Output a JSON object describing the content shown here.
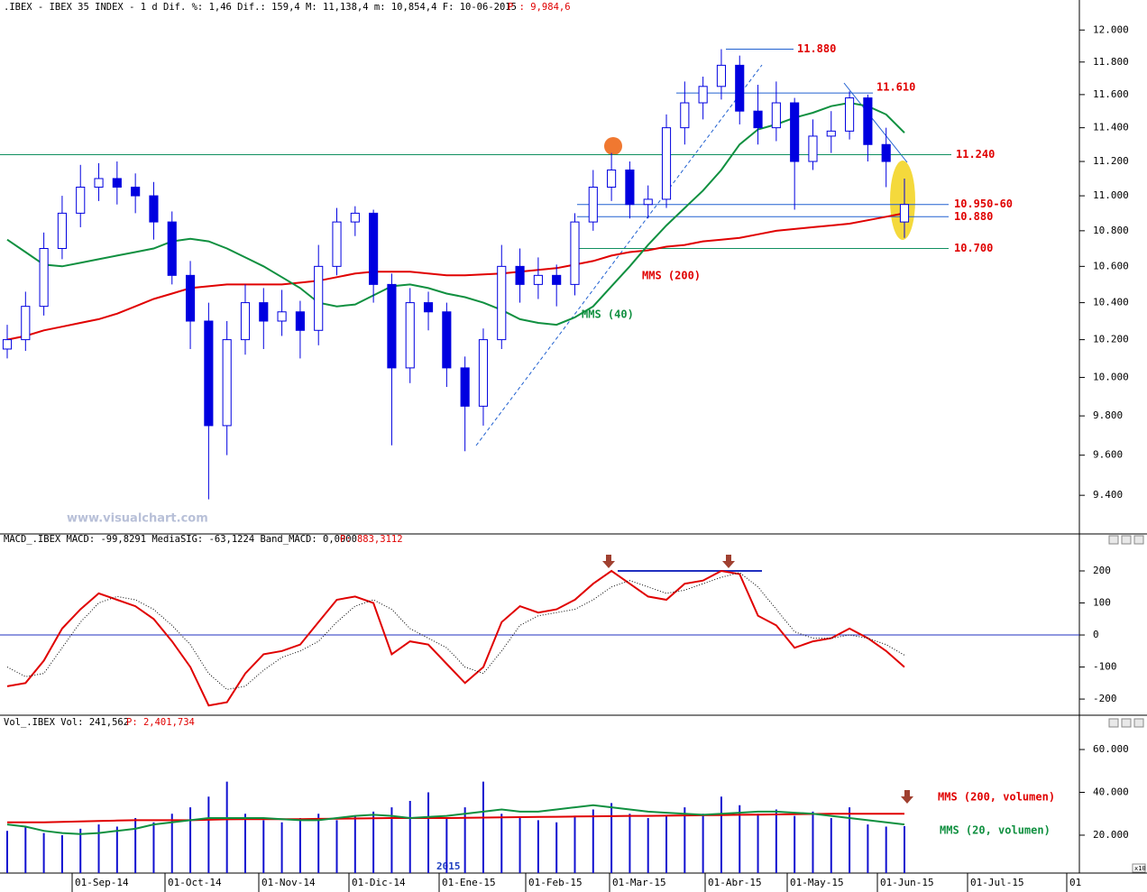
{
  "header": {
    "price": ".IBEX - IBEX 35 INDEX -  1 d Dif. %: 1,46 Dif.: 159,4 M: 11,138,4 m: 10,854,4 F: 10-06-2015",
    "price_p": "P : 9,984,6",
    "macd": "MACD_.IBEX MACD: -99,8291 MediaSIG: -63,1224 Band_MACD: 0,0000",
    "macd_p": "P: 883,3112",
    "vol": "Vol_.IBEX Vol: 241,562",
    "vol_p": "P: 2,401,734"
  },
  "x_axis_labels": [
    "01-Sep-14",
    "01-Oct-14",
    "01-Nov-14",
    "01-Dic-14",
    "01-Ene-15",
    "01-Feb-15",
    "01-Mar-15",
    "01-Abr-15",
    "01-May-15",
    "01-Jun-15",
    "01-Jul-15",
    "01"
  ],
  "year_label": "2015",
  "scale_badge": "x10",
  "chart_data": [
    {
      "type": "candlestick",
      "watermark": "www.visualchart.com",
      "log_scale": true,
      "up_color": "#ffffff",
      "down_color": "#0000e0",
      "outline_color": "#0000e0",
      "ylim": [
        9220,
        12110
      ],
      "yticks": [
        {
          "value": 9400,
          "label": "9.400"
        },
        {
          "value": 9600,
          "label": "9.600"
        },
        {
          "value": 9800,
          "label": "9.800"
        },
        {
          "value": 10000,
          "label": "10.000"
        },
        {
          "value": 10200,
          "label": "10.200"
        },
        {
          "value": 10400,
          "label": "10.400"
        },
        {
          "value": 10600,
          "label": "10.600"
        },
        {
          "value": 10800,
          "label": "10.800"
        },
        {
          "value": 11000,
          "label": "11.000"
        },
        {
          "value": 11200,
          "label": "11.200"
        },
        {
          "value": 11400,
          "label": "11.400"
        },
        {
          "value": 11600,
          "label": "11.600"
        },
        {
          "value": 11800,
          "label": "11.800"
        },
        {
          "value": 12000,
          "label": "12.000"
        }
      ],
      "open": [
        10150,
        10200,
        10380,
        10700,
        10900,
        11050,
        11100,
        11050,
        11000,
        10850,
        10550,
        10300,
        9750,
        10200,
        10400,
        10300,
        10350,
        10250,
        10600,
        10850,
        10900,
        10500,
        10050,
        10400,
        10350,
        10050,
        9850,
        10200,
        10600,
        10500,
        10550,
        10500,
        10850,
        11050,
        11150,
        10950,
        10980,
        11400,
        11550,
        11650,
        11780,
        11500,
        11400,
        11550,
        11200,
        11350,
        11380,
        11580,
        11300,
        10850
      ],
      "high": [
        10280,
        10460,
        10790,
        11000,
        11180,
        11190,
        11200,
        11130,
        11080,
        10910,
        10630,
        10400,
        10300,
        10500,
        10480,
        10470,
        10410,
        10720,
        10930,
        10940,
        10920,
        10560,
        10480,
        10460,
        10400,
        10110,
        10260,
        10720,
        10700,
        10650,
        10610,
        10900,
        11150,
        11250,
        11200,
        11060,
        11480,
        11680,
        11710,
        11880,
        11840,
        11660,
        11680,
        11580,
        11450,
        11500,
        11620,
        11600,
        11400,
        11100
      ],
      "low": [
        10100,
        10140,
        10330,
        10640,
        10820,
        10970,
        10950,
        10900,
        10750,
        10500,
        10150,
        9380,
        9600,
        10120,
        10150,
        10220,
        10100,
        10170,
        10550,
        10770,
        10400,
        9650,
        9970,
        10250,
        9950,
        9620,
        9750,
        10150,
        10400,
        10420,
        10380,
        10440,
        10800,
        10970,
        10870,
        10870,
        10930,
        11300,
        11450,
        11570,
        11420,
        11300,
        11320,
        10920,
        11150,
        11250,
        11330,
        11200,
        11050,
        10760
      ],
      "close": [
        10200,
        10380,
        10700,
        10900,
        11050,
        11100,
        11050,
        11000,
        10850,
        10550,
        10300,
        9750,
        10200,
        10400,
        10300,
        10350,
        10250,
        10600,
        10850,
        10900,
        10500,
        10050,
        10400,
        10350,
        10050,
        9850,
        10200,
        10600,
        10500,
        10550,
        10500,
        10850,
        11050,
        11150,
        10950,
        10980,
        11400,
        11550,
        11650,
        11780,
        11500,
        11400,
        11550,
        11200,
        11350,
        11380,
        11580,
        11300,
        11200,
        10950
      ],
      "series": [
        {
          "name": "MMS (200)",
          "color": "#e00000",
          "values": [
            10200,
            10220,
            10250,
            10270,
            10290,
            10310,
            10340,
            10380,
            10420,
            10450,
            10480,
            10490,
            10500,
            10500,
            10500,
            10500,
            10510,
            10520,
            10540,
            10560,
            10570,
            10570,
            10570,
            10560,
            10550,
            10550,
            10555,
            10560,
            10570,
            10580,
            10590,
            10610,
            10630,
            10660,
            10680,
            10690,
            10710,
            10720,
            10740,
            10750,
            10760,
            10780,
            10800,
            10810,
            10820,
            10830,
            10840,
            10860,
            10880,
            10900
          ]
        },
        {
          "name": "MMS (40)",
          "color": "#109040",
          "values": [
            10750,
            10680,
            10610,
            10600,
            10620,
            10640,
            10660,
            10680,
            10700,
            10740,
            10755,
            10740,
            10700,
            10650,
            10600,
            10540,
            10480,
            10400,
            10380,
            10390,
            10440,
            10490,
            10500,
            10480,
            10450,
            10430,
            10400,
            10360,
            10310,
            10290,
            10280,
            10320,
            10380,
            10490,
            10600,
            10720,
            10830,
            10930,
            11030,
            11150,
            11300,
            11390,
            11420,
            11460,
            11490,
            11530,
            11550,
            11530,
            11480,
            11370
          ]
        }
      ],
      "annotations": [
        {
          "text": "11.880",
          "value": 11880,
          "color": "#e00000",
          "line_color": "#2060d0"
        },
        {
          "text": "11.610",
          "value": 11610,
          "color": "#e00000",
          "line_color": "#2060d0"
        },
        {
          "text": "11.240",
          "value": 11240,
          "color": "#e00000",
          "line_color": "#109060"
        },
        {
          "text": "10.950-60",
          "value": 10950,
          "color": "#e00000",
          "line_color": "#2060d0"
        },
        {
          "text": "10.880",
          "value": 10880,
          "color": "#e00000",
          "line_color": "#2060d0"
        },
        {
          "text": "10.700",
          "value": 10700,
          "color": "#e00000",
          "line_color": "#109060"
        }
      ]
    },
    {
      "type": "line",
      "ylim": [
        -242,
        276
      ],
      "yticks": [
        -200,
        -100,
        0,
        100,
        200
      ],
      "zero_line_color": "#2030c0",
      "series": [
        {
          "name": "MACD",
          "color": "#e00000",
          "values": [
            -160,
            -150,
            -80,
            20,
            80,
            130,
            110,
            90,
            50,
            -20,
            -100,
            -220,
            -210,
            -120,
            -60,
            -50,
            -30,
            40,
            110,
            120,
            100,
            -60,
            -20,
            -30,
            -90,
            -150,
            -100,
            40,
            90,
            70,
            80,
            110,
            160,
            200,
            160,
            120,
            110,
            160,
            170,
            200,
            190,
            60,
            30,
            -40,
            -20,
            -10,
            20,
            -10,
            -50,
            -100
          ]
        },
        {
          "name": "MediaSIG",
          "color": "#000000",
          "dashed": true,
          "values": [
            -100,
            -130,
            -120,
            -40,
            40,
            100,
            120,
            110,
            80,
            30,
            -30,
            -120,
            -170,
            -160,
            -110,
            -70,
            -50,
            -20,
            40,
            90,
            110,
            80,
            20,
            -10,
            -40,
            -100,
            -120,
            -50,
            30,
            60,
            70,
            80,
            110,
            150,
            170,
            150,
            130,
            140,
            160,
            180,
            195,
            150,
            80,
            10,
            -10,
            -10,
            0,
            -10,
            -30,
            -63
          ]
        }
      ],
      "resistance": 200
    },
    {
      "type": "bar",
      "ylim": [
        2300,
        69700
      ],
      "color": "#1010d0",
      "yticks": [
        {
          "value": 20000,
          "label": "20.000"
        },
        {
          "value": 40000,
          "label": "40.000"
        },
        {
          "value": 60000,
          "label": "60.000"
        }
      ],
      "values": [
        22000,
        24000,
        21000,
        20000,
        23000,
        25000,
        24000,
        28000,
        26000,
        30000,
        33000,
        38000,
        45000,
        30000,
        27000,
        26000,
        28000,
        30000,
        27000,
        29000,
        31000,
        33000,
        36000,
        40000,
        28000,
        33000,
        45000,
        30000,
        28000,
        27000,
        26000,
        29000,
        32000,
        35000,
        30000,
        28000,
        29000,
        33000,
        30000,
        38000,
        34000,
        30000,
        32000,
        29000,
        31000,
        28000,
        33000,
        25000,
        24000,
        24200
      ],
      "series": [
        {
          "name": "MMS (200, volumen)",
          "color": "#e00000",
          "values": [
            26000,
            26000,
            26000,
            26200,
            26400,
            26600,
            26800,
            27000,
            27000,
            27000,
            27000,
            27200,
            27400,
            27500,
            27500,
            27500,
            27500,
            27600,
            27700,
            27800,
            27900,
            28000,
            28000,
            28000,
            28000,
            28100,
            28200,
            28300,
            28400,
            28500,
            28600,
            28700,
            28800,
            28900,
            29000,
            29000,
            29100,
            29200,
            29300,
            29400,
            29500,
            29600,
            29700,
            29800,
            29900,
            30000,
            30000,
            30000,
            30000,
            30000
          ]
        },
        {
          "name": "MMS (20, volumen)",
          "color": "#109040",
          "values": [
            25000,
            24000,
            22000,
            21000,
            20500,
            21000,
            22000,
            23000,
            25000,
            26000,
            27000,
            28000,
            28000,
            28000,
            28000,
            27500,
            27000,
            27000,
            28000,
            29000,
            29500,
            29000,
            28000,
            28500,
            29000,
            30000,
            31000,
            32000,
            31000,
            31000,
            32000,
            33000,
            34000,
            33000,
            32000,
            31000,
            30500,
            30000,
            29500,
            30000,
            30500,
            31000,
            31000,
            30500,
            30000,
            29000,
            28000,
            27000,
            26000,
            25000
          ]
        }
      ]
    }
  ]
}
